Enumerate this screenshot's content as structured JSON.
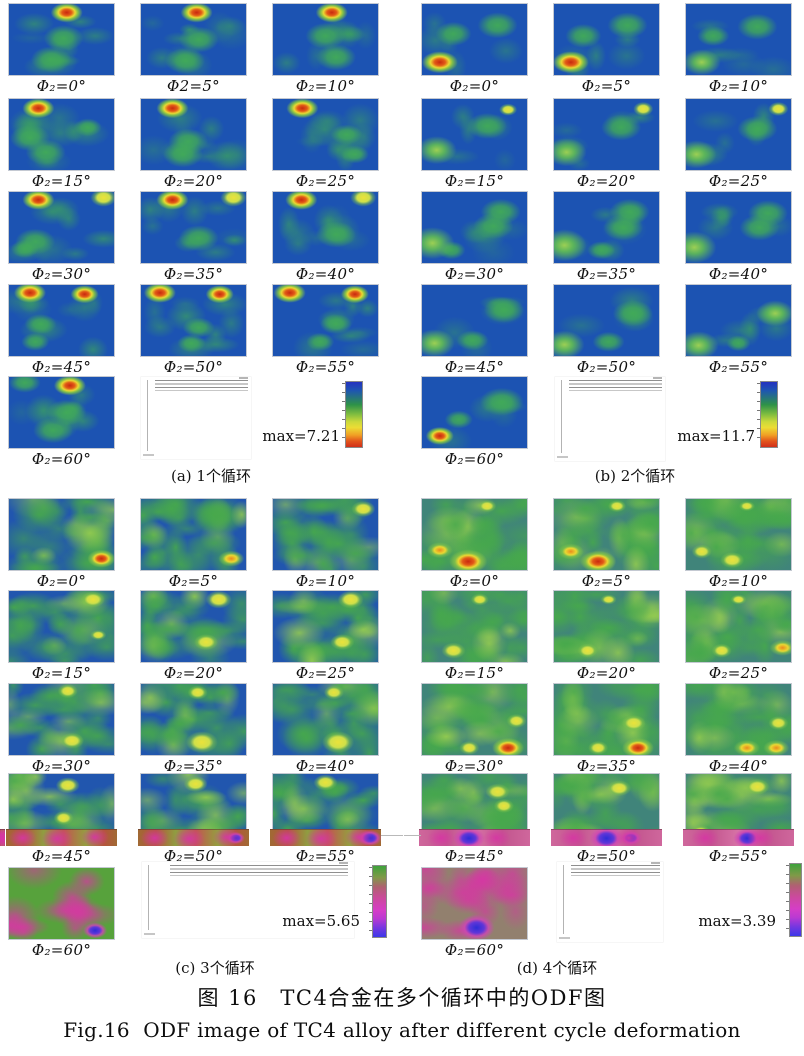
{
  "figure": {
    "caption_zh": "图 16　TC4合金在多个循环中的ODF图",
    "caption_en": "Fig.16  ODF image of TC4 alloy after different cycle deformation",
    "phi2_range_deg": [
      0,
      60
    ],
    "phi2_step_deg": 5,
    "panels": [
      {
        "id": "a",
        "caption": "(a) 1个循环",
        "max_label": "max=7.21",
        "max": 7.21,
        "colorbar": "blue-green-yellow-red",
        "labels": [
          "Φ₂=0°",
          "Φ2=5°",
          "Φ₂=10°",
          "Φ₂=15°",
          "Φ₂=20°",
          "Φ₂=25°",
          "Φ₂=30°",
          "Φ₂=35°",
          "Φ₂=40°",
          "Φ₂=45°",
          "Φ₂=50°",
          "Φ₂=55°",
          "Φ₂=60°"
        ]
      },
      {
        "id": "b",
        "caption": "(b) 2个循环",
        "max_label": "max=11.7",
        "max": 11.7,
        "colorbar": "blue-green-yellow-red",
        "labels": [
          "Φ₂=0°",
          "Φ₂=5°",
          "Φ₂=10°",
          "Φ₂=15°",
          "Φ₂=20°",
          "Φ₂=25°",
          "Φ₂=30°",
          "Φ₂=35°",
          "Φ₂=40°",
          "Φ₂=45°",
          "Φ₂=50°",
          "Φ₂=55°",
          "Φ₂=60°"
        ]
      },
      {
        "id": "c",
        "caption": "(c) 3个循环",
        "max_label": "max=5.65",
        "max": 5.65,
        "colorbar": "green-magenta-blue",
        "labels": [
          "Φ₂=0°",
          "Φ₂=5°",
          "Φ₂=10°",
          "Φ₂=15°",
          "Φ₂=20°",
          "Φ₂=25°",
          "Φ₂=30°",
          "Φ₂=35°",
          "Φ₂=40°",
          "Φ₂=45°",
          "Φ₂=50°",
          "Φ₂=55°",
          "Φ₂=60°"
        ]
      },
      {
        "id": "d",
        "caption": "(d) 4个循环",
        "max_label": "max=3.39",
        "max": 3.39,
        "colorbar": "green-magenta-blue",
        "labels": [
          "Φ₂=0°",
          "Φ₂=5°",
          "Φ₂=10°",
          "Φ₂=15°",
          "Φ₂=20°",
          "Φ₂=25°",
          "Φ₂=30°",
          "Φ₂=35°",
          "Φ₂=40°",
          "Φ₂=45°",
          "Φ₂=50°",
          "Φ₂=55°",
          "Φ₂=60°"
        ]
      }
    ],
    "colors": {
      "map_blue": "#1C53B2",
      "map_green": "#46A857",
      "hot_red": "#C8290F",
      "hot_orange": "#EC8A1C",
      "hot_yellow": "#EBE23A",
      "magenta": "#D436A4",
      "violet_blue": "#2D2DD6"
    }
  }
}
